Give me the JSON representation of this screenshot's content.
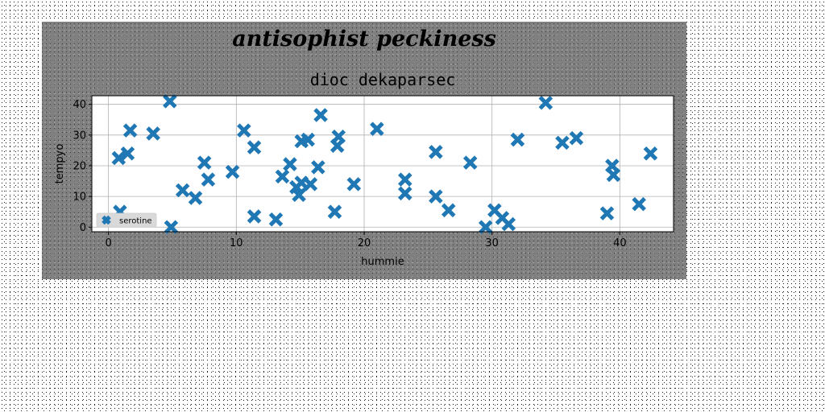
{
  "figure": {
    "suptitle": "antisophist peckiness"
  },
  "chart_data": {
    "type": "scatter",
    "title": "dioc dekaparsec",
    "xlabel": "hummie",
    "ylabel": "tempyo",
    "xlim": [
      -1.3,
      44.2
    ],
    "ylim": [
      -1.5,
      42.8
    ],
    "xticks": [
      0,
      10,
      20,
      30,
      40
    ],
    "yticks": [
      0,
      10,
      20,
      30,
      40
    ],
    "grid": true,
    "legend_position": "lower-left",
    "marker": "X",
    "series": [
      {
        "name": "serotine",
        "color": "#1f77b4",
        "points": [
          [
            0.8,
            22.5
          ],
          [
            1.5,
            24
          ],
          [
            1.7,
            31.5
          ],
          [
            3.5,
            30.5
          ],
          [
            0.9,
            5
          ],
          [
            4.8,
            41
          ],
          [
            4.9,
            0
          ],
          [
            5.8,
            12
          ],
          [
            6.8,
            9.5
          ],
          [
            7.5,
            21
          ],
          [
            7.8,
            15.5
          ],
          [
            9.7,
            18
          ],
          [
            10.6,
            31.5
          ],
          [
            11.4,
            26
          ],
          [
            11.4,
            3.5
          ],
          [
            13.1,
            2.5
          ],
          [
            13.6,
            16.5
          ],
          [
            14.2,
            20.5
          ],
          [
            14.7,
            13
          ],
          [
            14.9,
            10.5
          ],
          [
            15.1,
            14.5
          ],
          [
            15.1,
            28
          ],
          [
            15.6,
            28.5
          ],
          [
            15.8,
            14
          ],
          [
            16.4,
            19.5
          ],
          [
            16.6,
            36.5
          ],
          [
            17.7,
            5
          ],
          [
            17.9,
            26.5
          ],
          [
            18.0,
            29.5
          ],
          [
            19.2,
            14
          ],
          [
            21.0,
            32
          ],
          [
            23.2,
            15.5
          ],
          [
            23.2,
            11
          ],
          [
            25.6,
            24.5
          ],
          [
            25.6,
            10
          ],
          [
            26.6,
            5.5
          ],
          [
            28.3,
            21
          ],
          [
            29.5,
            0
          ],
          [
            30.2,
            5.5
          ],
          [
            30.8,
            3
          ],
          [
            31.3,
            1
          ],
          [
            32.0,
            28.5
          ],
          [
            34.2,
            40.5
          ],
          [
            35.5,
            27.5
          ],
          [
            36.6,
            29
          ],
          [
            39.0,
            4.5
          ],
          [
            39.4,
            20
          ],
          [
            39.5,
            17
          ],
          [
            41.5,
            7.5
          ],
          [
            42.4,
            24
          ]
        ]
      }
    ]
  }
}
